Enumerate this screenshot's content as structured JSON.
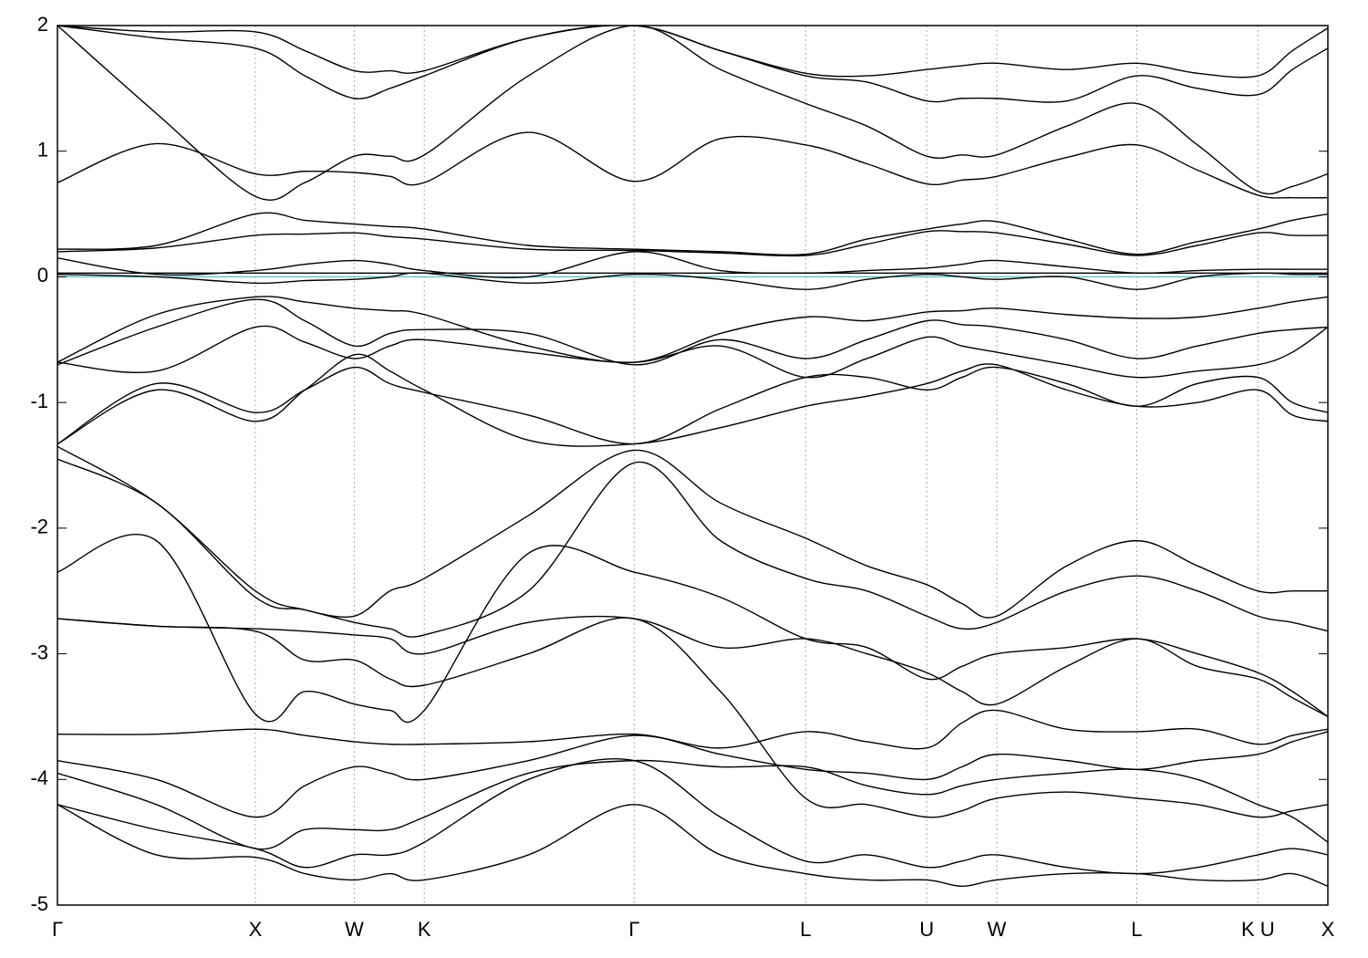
{
  "chart_data": {
    "type": "line",
    "x": [
      0,
      0.5,
      1,
      1.25,
      1.5,
      1.68,
      1.8536,
      2.38,
      2.9142,
      3.35,
      3.7803,
      4.09,
      4.3926,
      4.57,
      4.7462,
      5.1,
      5.4533,
      5.76,
      6.0657,
      6.24,
      6.4192
    ],
    "xlim": [
      0,
      6.4192
    ],
    "xticks": [
      {
        "value": 0,
        "label": "Γ"
      },
      {
        "value": 1,
        "label": "X"
      },
      {
        "value": 1.5,
        "label": "W"
      },
      {
        "value": 1.8536,
        "label": "K"
      },
      {
        "value": 2.9142,
        "label": "Γ"
      },
      {
        "value": 3.7803,
        "label": "L"
      },
      {
        "value": 4.3926,
        "label": "U"
      },
      {
        "value": 4.7462,
        "label": "W"
      },
      {
        "value": 5.4533,
        "label": "L"
      },
      {
        "value": 6.0657,
        "label": "K U"
      },
      {
        "value": 6.4192,
        "label": "X"
      }
    ],
    "ylim": [
      -5,
      2
    ],
    "yticks": [
      2,
      1,
      0,
      -1,
      -2,
      -3,
      -4,
      -5
    ],
    "color": "#000000",
    "fermi_level": 0,
    "fermi_color": "#6cc3cf",
    "vertical_grid": true,
    "series": [
      {
        "values": [
          0.75,
          1.06,
          0.82,
          0.84,
          0.83,
          0.8,
          0.75,
          1.15,
          0.76,
          1.1,
          1.05,
          0.9,
          0.74,
          0.77,
          0.8,
          0.95,
          1.05,
          0.85,
          0.65,
          0.63,
          0.63
        ]
      },
      {
        "values": [
          2.0,
          1.3,
          0.64,
          0.75,
          0.96,
          0.96,
          0.97,
          1.6,
          2.0,
          1.65,
          1.38,
          1.2,
          0.96,
          0.97,
          0.97,
          1.2,
          1.38,
          1.05,
          0.68,
          0.72,
          0.82
        ]
      },
      {
        "values": [
          2.0,
          1.9,
          1.82,
          1.6,
          1.42,
          1.5,
          1.6,
          1.9,
          2.0,
          1.8,
          1.6,
          1.55,
          1.4,
          1.42,
          1.42,
          1.4,
          1.6,
          1.5,
          1.45,
          1.65,
          1.82
        ]
      },
      {
        "values": [
          2.0,
          1.95,
          1.95,
          1.8,
          1.64,
          1.64,
          1.64,
          1.9,
          2.0,
          1.8,
          1.62,
          1.6,
          1.65,
          1.68,
          1.7,
          1.65,
          1.7,
          1.62,
          1.6,
          1.8,
          1.98
        ]
      },
      {
        "values": [
          0.22,
          0.25,
          0.5,
          0.45,
          0.42,
          0.4,
          0.38,
          0.25,
          0.22,
          0.2,
          0.18,
          0.3,
          0.38,
          0.42,
          0.44,
          0.3,
          0.18,
          0.28,
          0.38,
          0.45,
          0.5
        ]
      },
      {
        "values": [
          0.2,
          0.23,
          0.33,
          0.34,
          0.35,
          0.32,
          0.3,
          0.22,
          0.21,
          0.19,
          0.17,
          0.26,
          0.36,
          0.36,
          0.35,
          0.26,
          0.17,
          0.25,
          0.35,
          0.33,
          0.33
        ]
      },
      {
        "values": [
          0.15,
          0.02,
          0.05,
          0.1,
          0.13,
          0.1,
          0.05,
          0.0,
          0.2,
          0.05,
          0.03,
          0.05,
          0.07,
          0.1,
          0.13,
          0.08,
          0.03,
          0.05,
          0.06,
          0.06,
          0.06
        ]
      },
      {
        "values": [
          0.03,
          0.03,
          0.03,
          0.03,
          0.03,
          0.03,
          0.03,
          0.03,
          0.03,
          0.03,
          0.03,
          0.03,
          0.03,
          0.03,
          0.03,
          0.03,
          0.03,
          0.03,
          0.03,
          0.03,
          0.03
        ]
      },
      {
        "values": [
          0.02,
          0.0,
          -0.05,
          -0.03,
          -0.02,
          0.0,
          0.03,
          -0.05,
          0.02,
          -0.02,
          -0.1,
          -0.02,
          0.02,
          0.0,
          -0.02,
          0.0,
          -0.1,
          0.0,
          0.03,
          0.02,
          0.02
        ]
      },
      {
        "values": [
          -0.68,
          -0.3,
          -0.16,
          -0.2,
          -0.25,
          -0.27,
          -0.3,
          -0.55,
          -0.68,
          -0.45,
          -0.32,
          -0.35,
          -0.28,
          -0.27,
          -0.25,
          -0.3,
          -0.33,
          -0.32,
          -0.25,
          -0.2,
          -0.16
        ]
      },
      {
        "values": [
          -0.7,
          -0.4,
          -0.18,
          -0.35,
          -0.55,
          -0.45,
          -0.42,
          -0.45,
          -0.7,
          -0.5,
          -0.65,
          -0.5,
          -0.35,
          -0.38,
          -0.4,
          -0.5,
          -0.65,
          -0.55,
          -0.45,
          -0.42,
          -0.4
        ]
      },
      {
        "values": [
          -0.68,
          -0.75,
          -0.4,
          -0.52,
          -0.65,
          -0.55,
          -0.5,
          -0.6,
          -0.68,
          -0.55,
          -0.8,
          -0.65,
          -0.48,
          -0.55,
          -0.6,
          -0.7,
          -0.8,
          -0.75,
          -0.7,
          -0.6,
          -0.4
        ]
      },
      {
        "values": [
          -1.33,
          -0.85,
          -1.08,
          -0.9,
          -0.72,
          -0.85,
          -0.92,
          -1.1,
          -1.33,
          -1.05,
          -0.8,
          -0.8,
          -0.9,
          -0.8,
          -0.72,
          -0.85,
          -1.03,
          -0.85,
          -0.8,
          -1.0,
          -1.08
        ]
      },
      {
        "values": [
          -1.33,
          -0.9,
          -1.15,
          -0.9,
          -0.62,
          -0.75,
          -0.9,
          -1.3,
          -1.33,
          -1.2,
          -1.03,
          -0.95,
          -0.85,
          -0.75,
          -0.7,
          -0.9,
          -1.03,
          -1.0,
          -0.9,
          -1.1,
          -1.15
        ]
      },
      {
        "values": [
          -1.35,
          -1.8,
          -2.5,
          -2.65,
          -2.7,
          -2.5,
          -2.4,
          -1.9,
          -1.38,
          -1.8,
          -2.08,
          -2.3,
          -2.45,
          -2.6,
          -2.7,
          -2.3,
          -2.1,
          -2.3,
          -2.5,
          -2.5,
          -2.5
        ]
      },
      {
        "values": [
          -1.45,
          -1.8,
          -2.55,
          -2.65,
          -2.75,
          -2.8,
          -2.85,
          -2.5,
          -1.48,
          -2.1,
          -2.4,
          -2.5,
          -2.7,
          -2.8,
          -2.75,
          -2.5,
          -2.38,
          -2.5,
          -2.7,
          -2.75,
          -2.82
        ]
      },
      {
        "values": [
          -2.35,
          -2.1,
          -3.48,
          -3.3,
          -3.4,
          -3.45,
          -3.45,
          -2.2,
          -2.35,
          -2.55,
          -2.88,
          -2.95,
          -3.2,
          -3.1,
          -3.0,
          -2.95,
          -2.88,
          -3.0,
          -3.15,
          -3.3,
          -3.5
        ]
      },
      {
        "values": [
          -2.72,
          -2.78,
          -2.8,
          -2.82,
          -2.85,
          -2.88,
          -3.0,
          -2.75,
          -2.72,
          -2.95,
          -2.88,
          -3.0,
          -3.15,
          -3.3,
          -3.4,
          -3.1,
          -2.88,
          -3.1,
          -3.2,
          -3.35,
          -3.5
        ]
      },
      {
        "values": [
          -2.72,
          -2.78,
          -2.82,
          -3.05,
          -3.05,
          -3.2,
          -3.25,
          -3.0,
          -2.72,
          -3.3,
          -4.15,
          -4.2,
          -4.3,
          -4.25,
          -4.15,
          -4.1,
          -4.15,
          -4.2,
          -4.3,
          -4.25,
          -4.2
        ]
      },
      {
        "values": [
          -3.64,
          -3.64,
          -3.6,
          -3.65,
          -3.7,
          -3.72,
          -3.72,
          -3.7,
          -3.64,
          -3.75,
          -3.62,
          -3.7,
          -3.75,
          -3.55,
          -3.45,
          -3.6,
          -3.62,
          -3.6,
          -3.72,
          -3.65,
          -3.6
        ]
      },
      {
        "values": [
          -3.85,
          -4.0,
          -4.3,
          -4.05,
          -3.9,
          -3.95,
          -4.0,
          -3.85,
          -3.65,
          -3.8,
          -3.92,
          -3.95,
          -4.0,
          -3.9,
          -3.8,
          -3.85,
          -3.92,
          -3.85,
          -3.8,
          -3.7,
          -3.62
        ]
      },
      {
        "values": [
          -3.95,
          -4.2,
          -4.55,
          -4.4,
          -4.4,
          -4.4,
          -4.3,
          -3.95,
          -3.85,
          -3.9,
          -3.9,
          -4.05,
          -4.12,
          -4.05,
          -4.0,
          -3.95,
          -3.92,
          -4.0,
          -4.2,
          -4.3,
          -4.5
        ]
      },
      {
        "values": [
          -4.2,
          -4.4,
          -4.55,
          -4.7,
          -4.6,
          -4.6,
          -4.5,
          -4.0,
          -3.85,
          -4.3,
          -4.65,
          -4.6,
          -4.7,
          -4.65,
          -4.6,
          -4.7,
          -4.75,
          -4.7,
          -4.6,
          -4.55,
          -4.6
        ]
      },
      {
        "values": [
          -4.2,
          -4.6,
          -4.62,
          -4.75,
          -4.8,
          -4.75,
          -4.8,
          -4.6,
          -4.2,
          -4.6,
          -4.75,
          -4.8,
          -4.8,
          -4.85,
          -4.8,
          -4.75,
          -4.75,
          -4.8,
          -4.8,
          -4.75,
          -4.85
        ]
      }
    ]
  }
}
